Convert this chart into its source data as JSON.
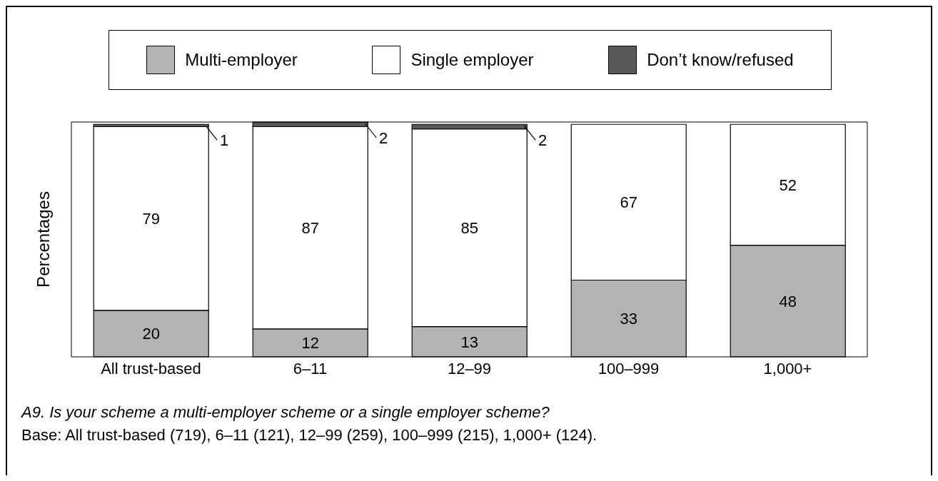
{
  "chart_data": {
    "type": "bar",
    "stacked": true,
    "ylabel": "Percentages",
    "categories": [
      "All trust-based",
      "6–11",
      "12–99",
      "100–999",
      "1,000+"
    ],
    "series": [
      {
        "name": "Multi-employer",
        "color": "#b3b3b3",
        "values": [
          20,
          12,
          13,
          33,
          48
        ]
      },
      {
        "name": "Single employer",
        "color": "#ffffff",
        "values": [
          79,
          87,
          85,
          67,
          52
        ]
      },
      {
        "name": "Don’t know/refused",
        "color": "#595959",
        "values": [
          1,
          2,
          2,
          null,
          null
        ]
      }
    ],
    "data_labels": true,
    "legend": "top",
    "grid": false,
    "annotations": [
      "A9. Is your scheme a multi-employer scheme or a single employer scheme?",
      "Base: All trust-based (719), 6–11 (121), 12–99 (259), 100–999 (215), 1,000+ (124)."
    ]
  }
}
